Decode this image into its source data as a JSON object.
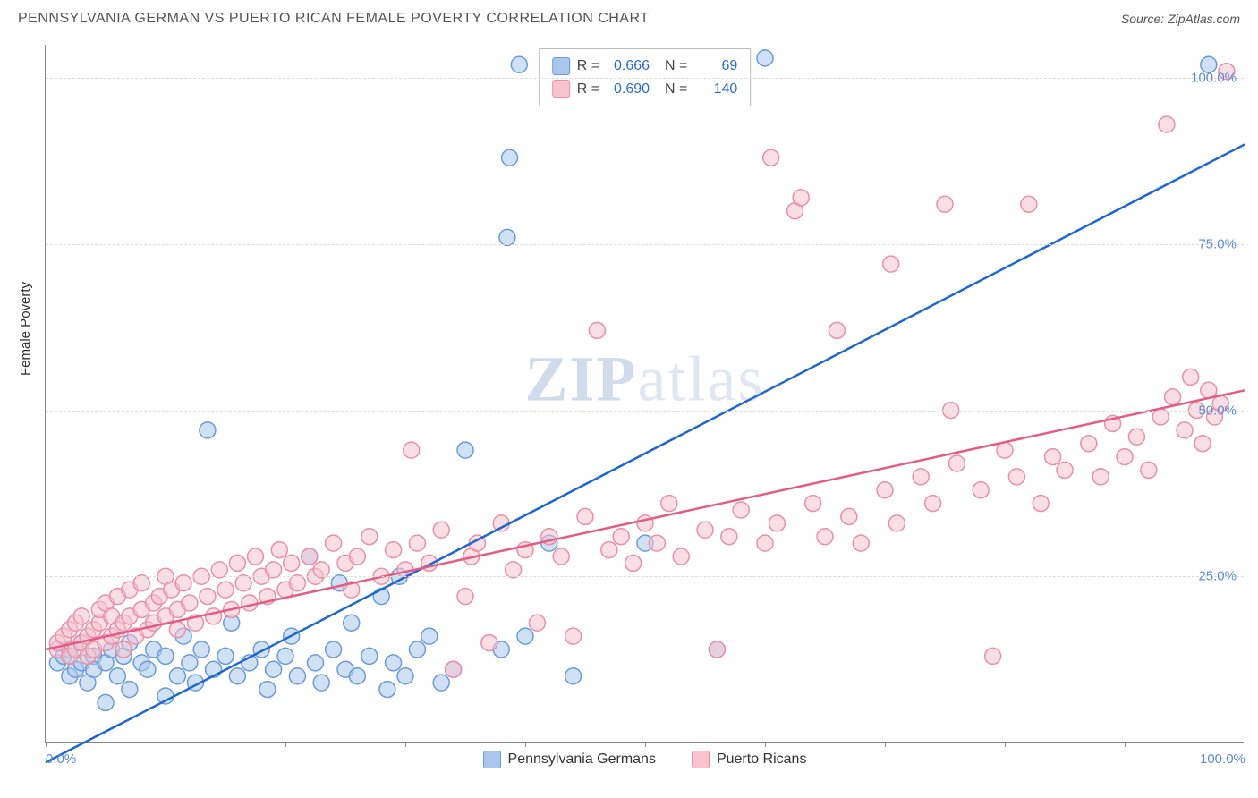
{
  "title": "PENNSYLVANIA GERMAN VS PUERTO RICAN FEMALE POVERTY CORRELATION CHART",
  "source": "Source: ZipAtlas.com",
  "y_axis_label": "Female Poverty",
  "watermark": {
    "part1": "ZIP",
    "part2": "atlas"
  },
  "chart": {
    "type": "scatter",
    "xlim": [
      0,
      100
    ],
    "ylim": [
      0,
      105
    ],
    "background_color": "#ffffff",
    "grid_color": "#dddddd",
    "axis_color": "#888888",
    "tick_label_color": "#5b8bd0",
    "marker_radius": 9,
    "marker_opacity": 0.55,
    "line_width": 2.5,
    "y_ticks": [
      {
        "v": 25,
        "label": "25.0%"
      },
      {
        "v": 50,
        "label": "50.0%"
      },
      {
        "v": 75,
        "label": "75.0%"
      },
      {
        "v": 100,
        "label": "100.0%"
      }
    ],
    "x_ticks": [
      {
        "v": 0,
        "label": "0.0%"
      },
      {
        "v": 10,
        "label": ""
      },
      {
        "v": 20,
        "label": ""
      },
      {
        "v": 30,
        "label": ""
      },
      {
        "v": 40,
        "label": ""
      },
      {
        "v": 50,
        "label": ""
      },
      {
        "v": 60,
        "label": ""
      },
      {
        "v": 70,
        "label": ""
      },
      {
        "v": 80,
        "label": ""
      },
      {
        "v": 90,
        "label": ""
      },
      {
        "v": 100,
        "label": "100.0%"
      }
    ],
    "series": [
      {
        "key": "pa_germans",
        "label": "Pennsylvania Germans",
        "fill": "#a9c6ec",
        "stroke": "#6a9bd8",
        "line_color": "#1e66d0",
        "R": "0.666",
        "N": "69",
        "regression": {
          "x1": 0,
          "y1": -3,
          "x2": 100,
          "y2": 90
        },
        "points": [
          [
            1,
            12
          ],
          [
            1.5,
            13
          ],
          [
            2,
            10
          ],
          [
            2,
            14
          ],
          [
            2.5,
            11
          ],
          [
            3,
            12
          ],
          [
            3,
            15
          ],
          [
            3.5,
            9
          ],
          [
            4,
            13
          ],
          [
            4,
            11
          ],
          [
            5,
            6
          ],
          [
            5,
            12
          ],
          [
            5.5,
            14
          ],
          [
            6,
            10
          ],
          [
            6.5,
            13
          ],
          [
            7,
            8
          ],
          [
            7,
            15
          ],
          [
            8,
            12
          ],
          [
            8.5,
            11
          ],
          [
            9,
            14
          ],
          [
            10,
            7
          ],
          [
            10,
            13
          ],
          [
            11,
            10
          ],
          [
            11.5,
            16
          ],
          [
            12,
            12
          ],
          [
            12.5,
            9
          ],
          [
            13,
            14
          ],
          [
            13.5,
            47
          ],
          [
            14,
            11
          ],
          [
            15,
            13
          ],
          [
            15.5,
            18
          ],
          [
            16,
            10
          ],
          [
            17,
            12
          ],
          [
            18,
            14
          ],
          [
            18.5,
            8
          ],
          [
            19,
            11
          ],
          [
            20,
            13
          ],
          [
            20.5,
            16
          ],
          [
            21,
            10
          ],
          [
            22,
            28
          ],
          [
            22.5,
            12
          ],
          [
            23,
            9
          ],
          [
            24,
            14
          ],
          [
            24.5,
            24
          ],
          [
            25,
            11
          ],
          [
            25.5,
            18
          ],
          [
            26,
            10
          ],
          [
            27,
            13
          ],
          [
            28,
            22
          ],
          [
            28.5,
            8
          ],
          [
            29,
            12
          ],
          [
            29.5,
            25
          ],
          [
            30,
            10
          ],
          [
            31,
            14
          ],
          [
            32,
            16
          ],
          [
            33,
            9
          ],
          [
            34,
            11
          ],
          [
            35,
            44
          ],
          [
            38,
            14
          ],
          [
            38.5,
            76
          ],
          [
            38.7,
            88
          ],
          [
            39.5,
            102
          ],
          [
            40,
            16
          ],
          [
            42,
            30
          ],
          [
            44,
            10
          ],
          [
            50,
            30
          ],
          [
            56,
            14
          ],
          [
            60,
            103
          ],
          [
            97,
            102
          ]
        ]
      },
      {
        "key": "puerto_ricans",
        "label": "Puerto Ricans",
        "fill": "#f6c3cf",
        "stroke": "#e98fa6",
        "line_color": "#e55b84",
        "R": "0.690",
        "N": "140",
        "regression": {
          "x1": 0,
          "y1": 14,
          "x2": 100,
          "y2": 53
        },
        "points": [
          [
            1,
            14
          ],
          [
            1,
            15
          ],
          [
            1.5,
            16
          ],
          [
            2,
            13
          ],
          [
            2,
            17
          ],
          [
            2.5,
            14
          ],
          [
            2.5,
            18
          ],
          [
            3,
            15
          ],
          [
            3,
            19
          ],
          [
            3.5,
            16
          ],
          [
            3.5,
            13
          ],
          [
            4,
            17
          ],
          [
            4,
            14
          ],
          [
            4.5,
            18
          ],
          [
            4.5,
            20
          ],
          [
            5,
            15
          ],
          [
            5,
            21
          ],
          [
            5.5,
            16
          ],
          [
            5.5,
            19
          ],
          [
            6,
            17
          ],
          [
            6,
            22
          ],
          [
            6.5,
            18
          ],
          [
            6.5,
            14
          ],
          [
            7,
            19
          ],
          [
            7,
            23
          ],
          [
            7.5,
            16
          ],
          [
            8,
            20
          ],
          [
            8,
            24
          ],
          [
            8.5,
            17
          ],
          [
            9,
            21
          ],
          [
            9,
            18
          ],
          [
            9.5,
            22
          ],
          [
            10,
            19
          ],
          [
            10,
            25
          ],
          [
            10.5,
            23
          ],
          [
            11,
            20
          ],
          [
            11,
            17
          ],
          [
            11.5,
            24
          ],
          [
            12,
            21
          ],
          [
            12.5,
            18
          ],
          [
            13,
            25
          ],
          [
            13.5,
            22
          ],
          [
            14,
            19
          ],
          [
            14.5,
            26
          ],
          [
            15,
            23
          ],
          [
            15.5,
            20
          ],
          [
            16,
            27
          ],
          [
            16.5,
            24
          ],
          [
            17,
            21
          ],
          [
            17.5,
            28
          ],
          [
            18,
            25
          ],
          [
            18.5,
            22
          ],
          [
            19,
            26
          ],
          [
            19.5,
            29
          ],
          [
            20,
            23
          ],
          [
            20.5,
            27
          ],
          [
            21,
            24
          ],
          [
            22,
            28
          ],
          [
            22.5,
            25
          ],
          [
            23,
            26
          ],
          [
            24,
            30
          ],
          [
            25,
            27
          ],
          [
            25.5,
            23
          ],
          [
            26,
            28
          ],
          [
            27,
            31
          ],
          [
            28,
            25
          ],
          [
            29,
            29
          ],
          [
            30,
            26
          ],
          [
            30.5,
            44
          ],
          [
            31,
            30
          ],
          [
            32,
            27
          ],
          [
            33,
            32
          ],
          [
            34,
            11
          ],
          [
            35,
            22
          ],
          [
            35.5,
            28
          ],
          [
            36,
            30
          ],
          [
            37,
            15
          ],
          [
            38,
            33
          ],
          [
            39,
            26
          ],
          [
            40,
            29
          ],
          [
            41,
            18
          ],
          [
            42,
            31
          ],
          [
            43,
            28
          ],
          [
            44,
            16
          ],
          [
            45,
            34
          ],
          [
            46,
            62
          ],
          [
            47,
            29
          ],
          [
            48,
            31
          ],
          [
            49,
            27
          ],
          [
            50,
            33
          ],
          [
            51,
            30
          ],
          [
            52,
            36
          ],
          [
            53,
            28
          ],
          [
            55,
            32
          ],
          [
            56,
            14
          ],
          [
            57,
            31
          ],
          [
            58,
            35
          ],
          [
            60,
            30
          ],
          [
            60.5,
            88
          ],
          [
            61,
            33
          ],
          [
            62.5,
            80
          ],
          [
            63,
            82
          ],
          [
            64,
            36
          ],
          [
            65,
            31
          ],
          [
            66,
            62
          ],
          [
            67,
            34
          ],
          [
            68,
            30
          ],
          [
            70,
            38
          ],
          [
            70.5,
            72
          ],
          [
            71,
            33
          ],
          [
            73,
            40
          ],
          [
            74,
            36
          ],
          [
            75,
            81
          ],
          [
            75.5,
            50
          ],
          [
            76,
            42
          ],
          [
            78,
            38
          ],
          [
            79,
            13
          ],
          [
            80,
            44
          ],
          [
            81,
            40
          ],
          [
            82,
            81
          ],
          [
            83,
            36
          ],
          [
            84,
            43
          ],
          [
            85,
            41
          ],
          [
            87,
            45
          ],
          [
            88,
            40
          ],
          [
            89,
            48
          ],
          [
            90,
            43
          ],
          [
            91,
            46
          ],
          [
            92,
            41
          ],
          [
            93,
            49
          ],
          [
            93.5,
            93
          ],
          [
            94,
            52
          ],
          [
            95,
            47
          ],
          [
            95.5,
            55
          ],
          [
            96,
            50
          ],
          [
            96.5,
            45
          ],
          [
            97,
            53
          ],
          [
            97.5,
            49
          ],
          [
            98,
            51
          ],
          [
            98.5,
            101
          ]
        ]
      }
    ]
  }
}
